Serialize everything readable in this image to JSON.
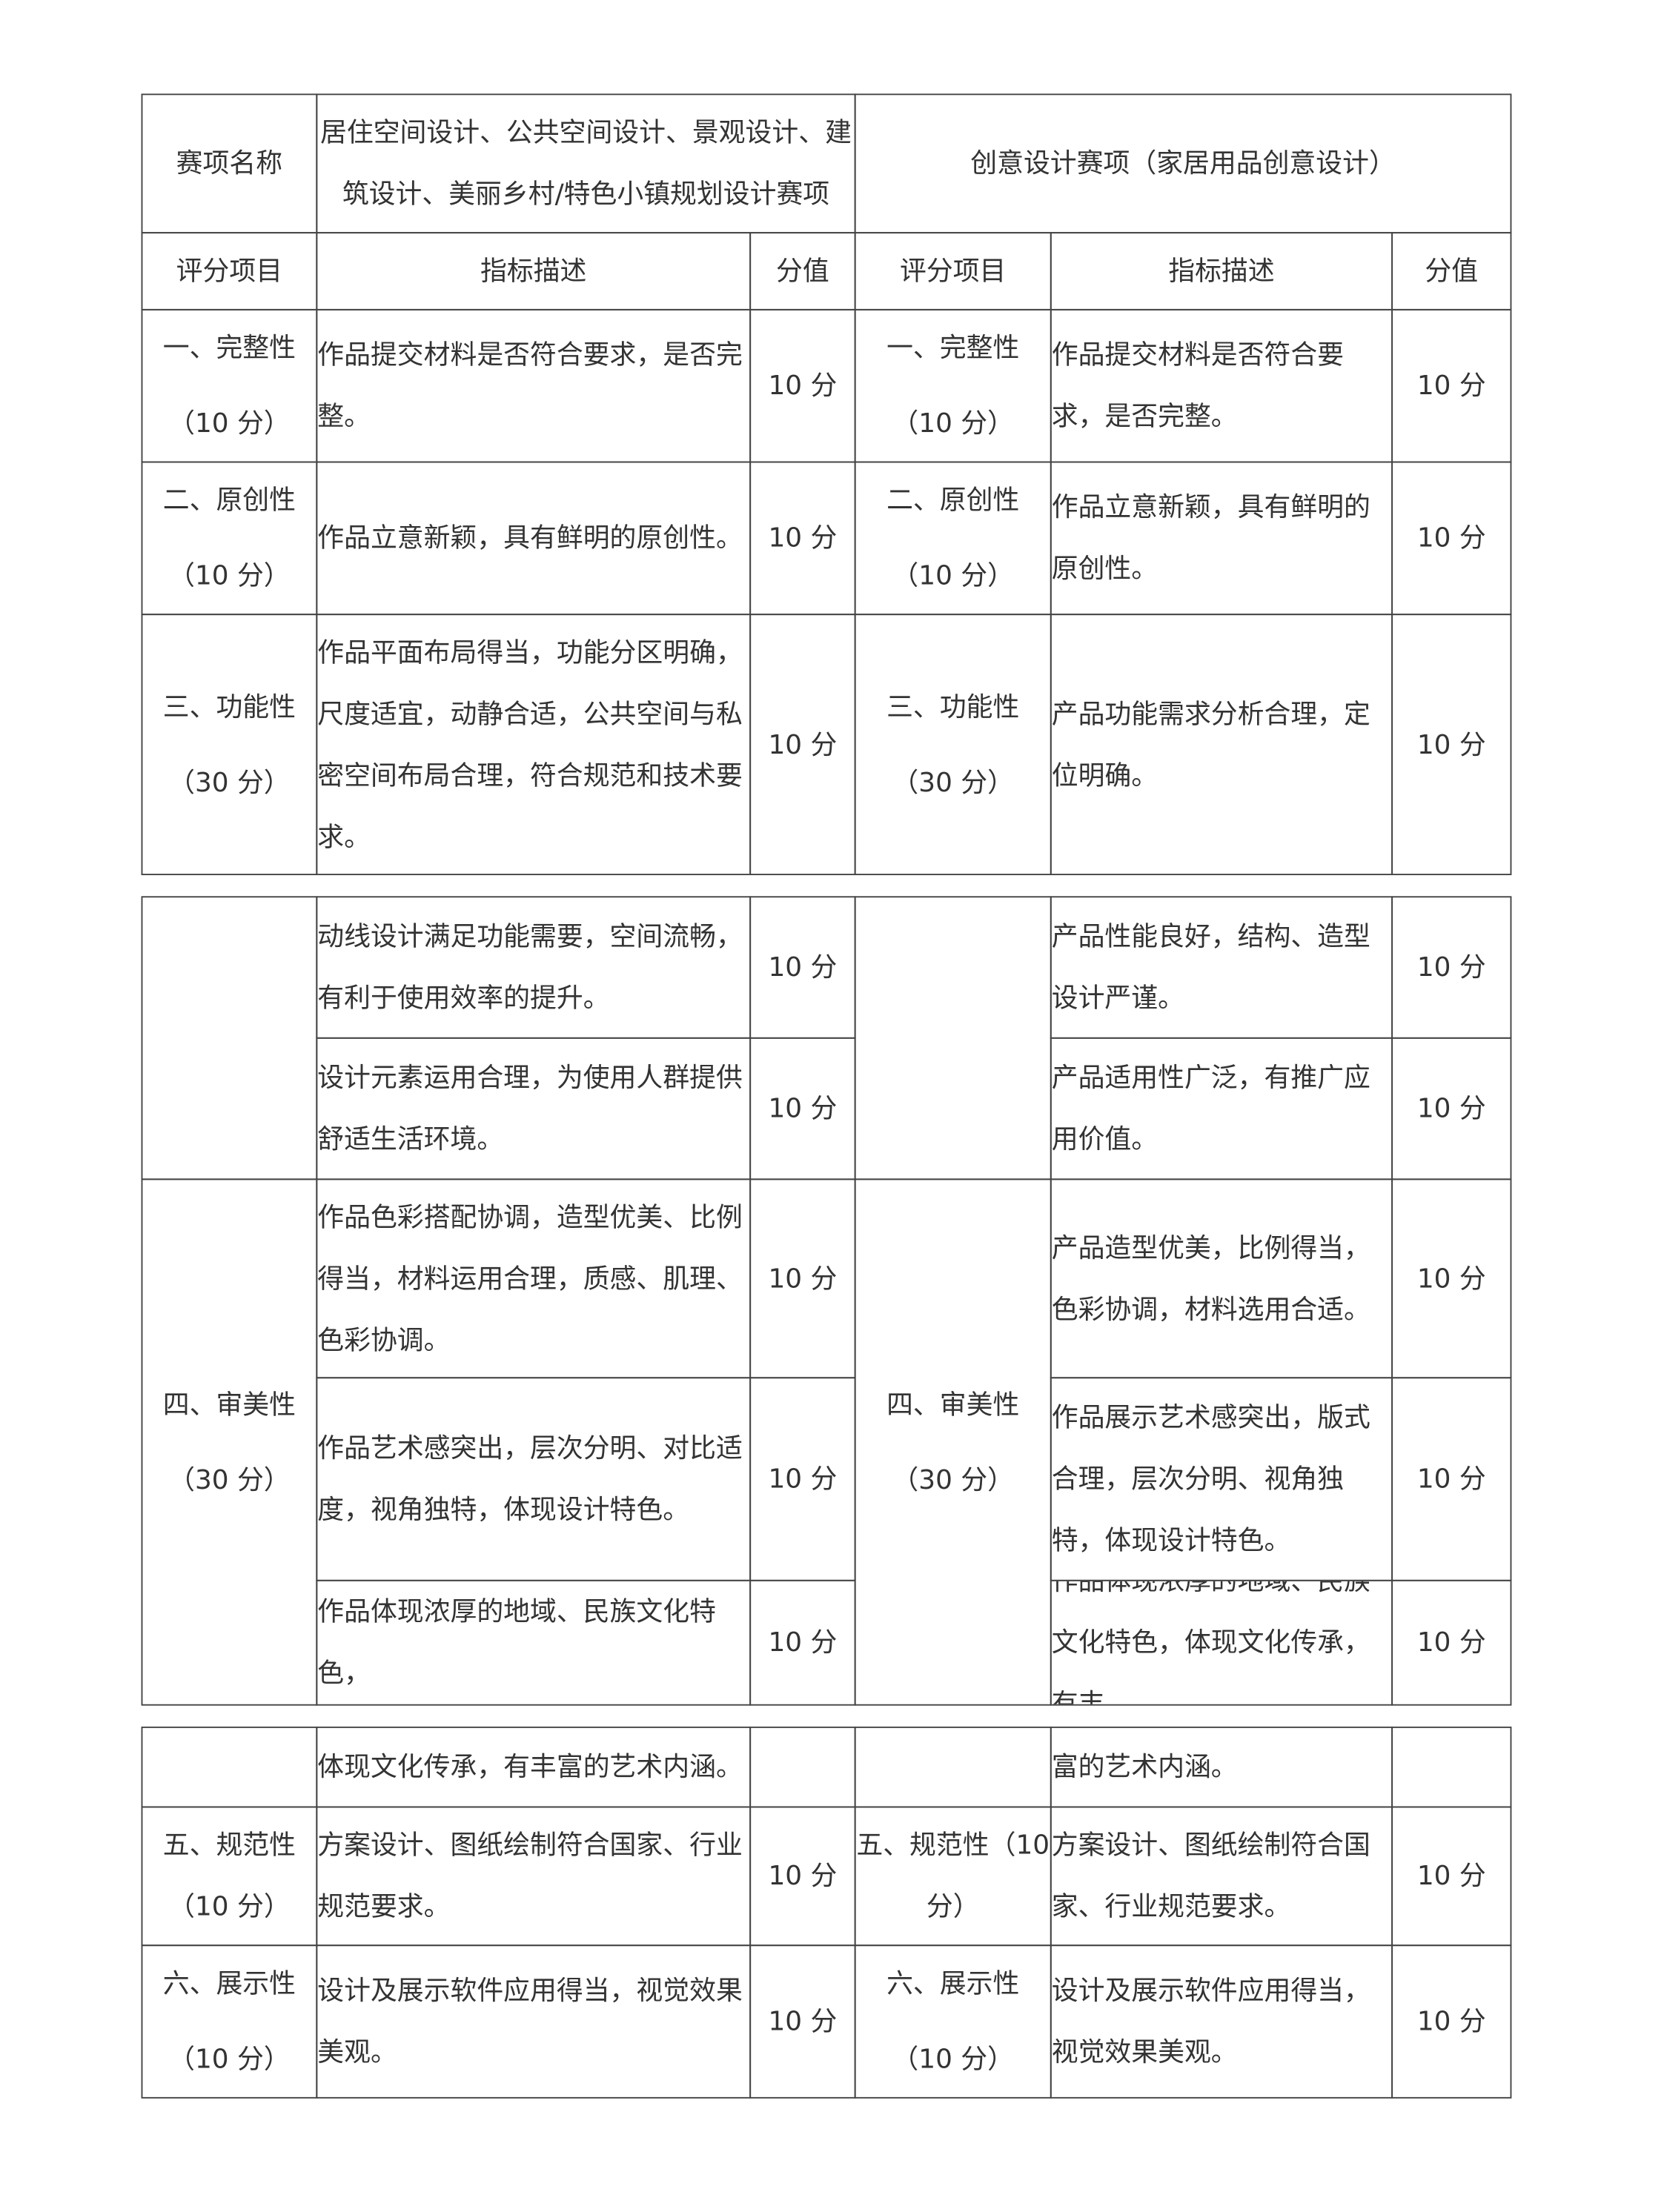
{
  "header": {
    "name_label": "赛项名称",
    "left_title": "居住空间设计、公共空间设计、景观设计、建筑设计、美丽乡村/特色小镇规划设计赛项",
    "right_title": "创意设计赛项（家居用品创意设计）"
  },
  "columns": {
    "item": "评分项目",
    "desc": "指标描述",
    "score": "分值"
  },
  "categories": {
    "completeness": [
      "一、完整性",
      "（10 分）"
    ],
    "originality": [
      "二、原创性",
      "（10 分）"
    ],
    "functionality": [
      "三、功能性",
      "（30 分）"
    ],
    "aesthetics": [
      "四、审美性",
      "（30 分）"
    ],
    "standards_left": "五、规范性（10 分）",
    "standards_right": "五、规范性（10 分）",
    "presentation": [
      "六、展示性",
      "（10 分）"
    ]
  },
  "left": [
    "作品提交材料是否符合要求，是否完整。",
    "作品立意新颖，具有鲜明的原创性。",
    "作品平面布局得当，功能分区明确，尺度适宜，动静合适，公共空间与私密空间布局合理，符合规范和技术要求。",
    "动线设计满足功能需要，空间流畅，有利于使用效率的提升。",
    "设计元素运用合理，为使用人群提供舒适生活环境。",
    "作品色彩搭配协调，造型优美、比例得当，材料运用合理，质感、肌理、色彩协调。",
    "作品艺术感突出，层次分明、对比适度，视角独特，体现设计特色。",
    "作品体现浓厚的地域、民族文化特色，",
    "体现文化传承，有丰富的艺术内涵。",
    "方案设计、图纸绘制符合国家、行业规范要求。",
    "设计及展示软件应用得当，视觉效果美观。"
  ],
  "right": [
    "作品提交材料是否符合要求，是否完整。",
    "作品立意新颖，具有鲜明的原创性。",
    "产品功能需求分析合理，定位明确。",
    "产品性能良好，结构、造型设计严谨。",
    "产品适用性广泛，有推广应用价值。",
    "产品造型优美，比例得当，色彩协调，材料选用合适。",
    "作品展示艺术感突出，版式合理，层次分明、视角独特，体现设计特色。",
    "作品体现浓厚的地域、民族文化特色，体现文化传承，有丰",
    "富的艺术内涵。",
    "方案设计、图纸绘制符合国家、行业规范要求。",
    "设计及展示软件应用得当，视觉效果美观。"
  ],
  "score": "10 分"
}
